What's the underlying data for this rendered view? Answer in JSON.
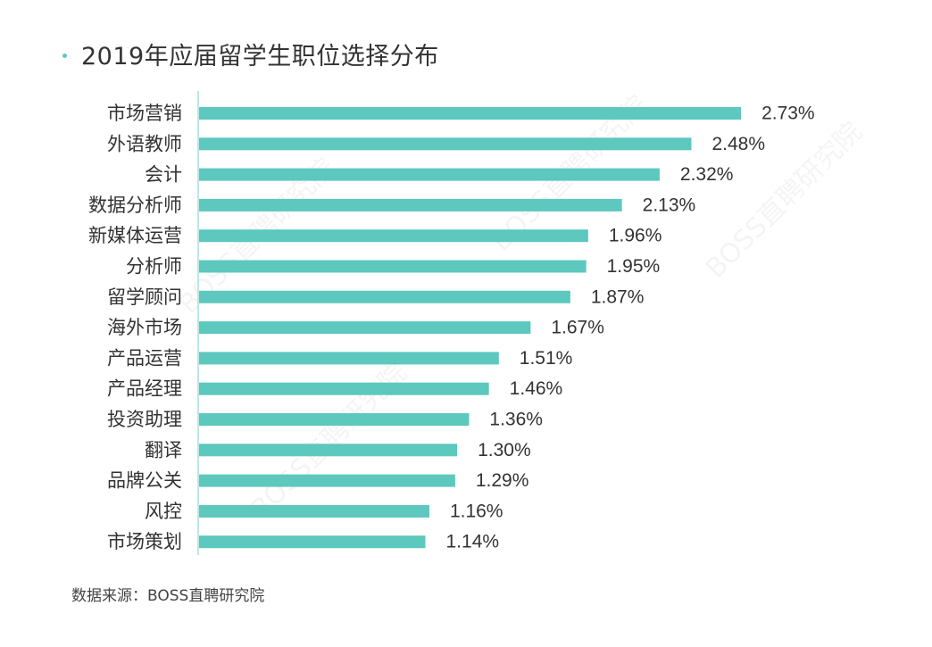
{
  "title": "2019年应届留学生职位选择分布",
  "source": "数据来源：BOSS直聘研究院",
  "watermark": "BOSS直聘研究院",
  "colors": {
    "bar": "#5cc8be",
    "dot": "#5cc8be",
    "axis": "#bde7e2",
    "text": "#333333"
  },
  "chart_data": {
    "type": "bar",
    "orientation": "horizontal",
    "title": "2019年应届留学生职位选择分布",
    "categories": [
      "市场营销",
      "外语教师",
      "会计",
      "数据分析师",
      "新媒体运营",
      "分析师",
      "留学顾问",
      "海外市场",
      "产品运营",
      "产品经理",
      "投资助理",
      "翻译",
      "品牌公关",
      "风控",
      "市场策划"
    ],
    "values": [
      2.73,
      2.48,
      2.32,
      2.13,
      1.96,
      1.95,
      1.87,
      1.67,
      1.51,
      1.46,
      1.36,
      1.3,
      1.29,
      1.16,
      1.14
    ],
    "value_labels": [
      "2.73%",
      "2.48%",
      "2.32%",
      "2.13%",
      "1.96%",
      "1.95%",
      "1.87%",
      "1.67%",
      "1.51%",
      "1.46%",
      "1.36%",
      "1.30%",
      "1.29%",
      "1.16%",
      "1.14%"
    ],
    "unit": "%",
    "xlabel": "",
    "ylabel": "",
    "xlim": [
      0,
      2.95
    ],
    "grid": false,
    "legend": "none"
  }
}
